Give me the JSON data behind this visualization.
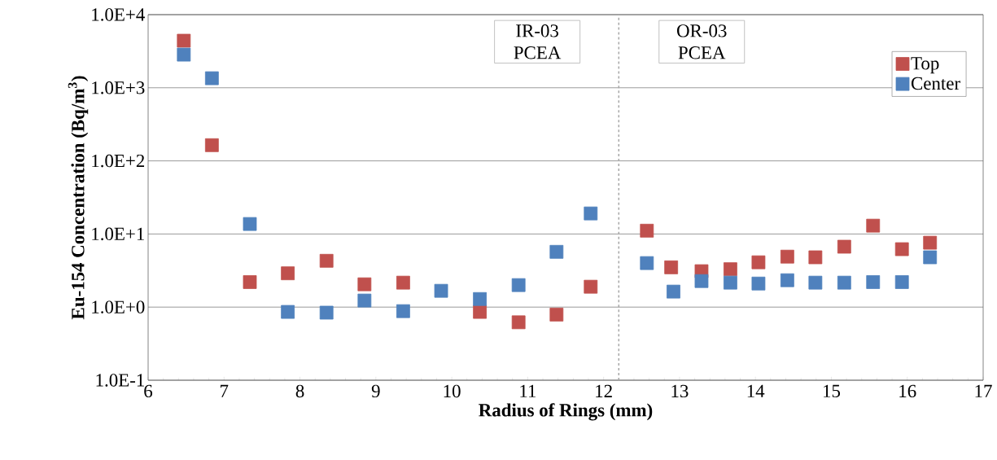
{
  "chart_data": {
    "type": "scatter",
    "xlabel": "Radius of Rings (mm)",
    "ylabel": "Eu-154 Concentration (Bq/m$^{3}$)",
    "log": "y",
    "xlim": [
      6,
      17
    ],
    "xticks": [
      6,
      7,
      8,
      9,
      10,
      11,
      12,
      13,
      14,
      15,
      16,
      17
    ],
    "ylim": [
      0.1,
      10000
    ],
    "yticks": [
      {
        "value": 0.1,
        "label": "1.0E-1"
      },
      {
        "value": 1,
        "label": "1.0E+0"
      },
      {
        "value": 10,
        "label": "1.0E+1"
      },
      {
        "value": 100,
        "label": "1.0E+2"
      },
      {
        "value": 1000,
        "label": "1.0E+3"
      },
      {
        "value": 10000,
        "label": "1.0E+4"
      }
    ],
    "grid": "y",
    "legend": "top right",
    "marker": "square",
    "series": [
      {
        "name": "Top",
        "color": "#c0504d",
        "x": [
          6.47,
          6.84,
          7.34,
          7.84,
          8.35,
          8.85,
          9.36,
          9.86,
          10.37,
          10.88,
          11.38,
          11.83,
          12.57,
          12.89,
          13.29,
          13.67,
          14.04,
          14.42,
          14.79,
          15.17,
          15.55,
          15.93,
          16.3
        ],
        "values": [
          4400,
          164,
          2.2,
          2.9,
          4.3,
          2.05,
          2.16,
          null,
          0.86,
          0.62,
          0.79,
          1.9,
          11.1,
          3.5,
          3.1,
          3.3,
          4.1,
          4.9,
          4.8,
          6.7,
          13,
          6.2,
          7.6
        ]
      },
      {
        "name": "Center",
        "color": "#4f81bd",
        "x": [
          6.47,
          6.84,
          7.34,
          7.84,
          8.35,
          8.85,
          9.36,
          9.86,
          10.37,
          10.88,
          11.38,
          11.83,
          12.57,
          12.92,
          13.29,
          13.67,
          14.04,
          14.42,
          14.79,
          15.17,
          15.55,
          15.93,
          16.3
        ],
        "values": [
          2840,
          1350,
          13.7,
          0.86,
          0.84,
          1.23,
          0.88,
          1.67,
          1.29,
          2.0,
          5.7,
          19.1,
          4.0,
          1.63,
          2.27,
          2.16,
          2.1,
          2.33,
          2.16,
          2.16,
          2.2,
          2.2,
          4.8
        ]
      }
    ],
    "ref_lines": [
      {
        "axis": "x",
        "value": 12.2,
        "color": "#a6a6a6",
        "line_style": "dashed"
      }
    ],
    "annotations": [
      "IR-03 PCEA",
      "OR-03 PCEA"
    ]
  }
}
